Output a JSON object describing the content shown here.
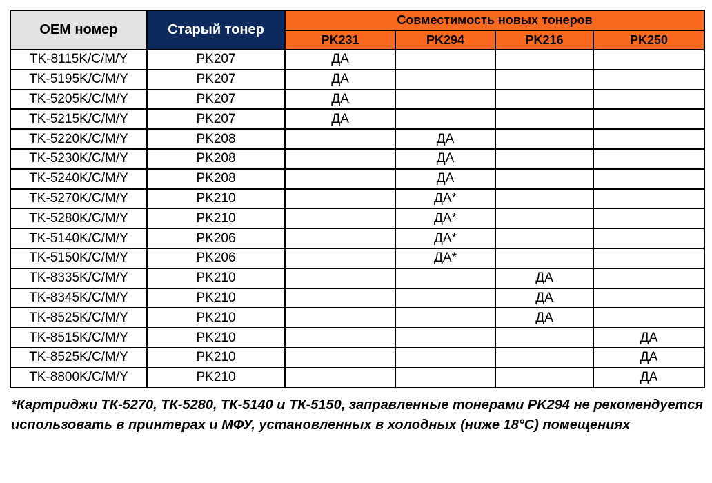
{
  "colors": {
    "header_gray": "#E3E3E3",
    "header_navy": "#0E2A5C",
    "header_orange": "#FA691E",
    "border_black": "#000000"
  },
  "table": {
    "header": {
      "oem": "OEM номер",
      "old_toner": "Старый тонер",
      "compat_group": "Совместимость новых тонеров",
      "new_toners": [
        "PK231",
        "PK294",
        "PK216",
        "PK250"
      ]
    },
    "rows": [
      {
        "oem": "TK-8115K/C/M/Y",
        "old": "PK207",
        "compat": [
          "ДА",
          "",
          "",
          ""
        ]
      },
      {
        "oem": "TK-5195K/C/M/Y",
        "old": "PK207",
        "compat": [
          "ДА",
          "",
          "",
          ""
        ]
      },
      {
        "oem": "TK-5205K/C/M/Y",
        "old": "PK207",
        "compat": [
          "ДА",
          "",
          "",
          ""
        ]
      },
      {
        "oem": "TK-5215K/C/M/Y",
        "old": "PK207",
        "compat": [
          "ДА",
          "",
          "",
          ""
        ]
      },
      {
        "oem": "TK-5220K/C/M/Y",
        "old": "PK208",
        "compat": [
          "",
          "ДА",
          "",
          ""
        ]
      },
      {
        "oem": "TK-5230K/C/M/Y",
        "old": "PK208",
        "compat": [
          "",
          "ДА",
          "",
          ""
        ]
      },
      {
        "oem": "TK-5240K/C/M/Y",
        "old": "PK208",
        "compat": [
          "",
          "ДА",
          "",
          ""
        ]
      },
      {
        "oem": "TK-5270K/C/M/Y",
        "old": "PK210",
        "compat": [
          "",
          "ДА*",
          "",
          ""
        ]
      },
      {
        "oem": "TK-5280K/C/M/Y",
        "old": "PK210",
        "compat": [
          "",
          "ДА*",
          "",
          ""
        ]
      },
      {
        "oem": "TK-5140K/C/M/Y",
        "old": "PK206",
        "compat": [
          "",
          "ДА*",
          "",
          ""
        ]
      },
      {
        "oem": "TK-5150K/C/M/Y",
        "old": "PK206",
        "compat": [
          "",
          "ДА*",
          "",
          ""
        ]
      },
      {
        "oem": "TK-8335K/C/M/Y",
        "old": "PK210",
        "compat": [
          "",
          "",
          "ДА",
          ""
        ]
      },
      {
        "oem": "TK-8345K/C/M/Y",
        "old": "PK210",
        "compat": [
          "",
          "",
          "ДА",
          ""
        ]
      },
      {
        "oem": "TK-8525K/C/M/Y",
        "old": "PK210",
        "compat": [
          "",
          "",
          "ДА",
          ""
        ]
      },
      {
        "oem": "TK-8515K/C/M/Y",
        "old": "PK210",
        "compat": [
          "",
          "",
          "",
          "ДА"
        ]
      },
      {
        "oem": "TK-8525K/C/M/Y",
        "old": "PK210",
        "compat": [
          "",
          "",
          "",
          "ДА"
        ]
      },
      {
        "oem": "TK-8800K/C/M/Y",
        "old": "PK210",
        "compat": [
          "",
          "",
          "",
          "ДА"
        ]
      }
    ]
  },
  "footnote": "*Картриджи ТК-5270, ТК-5280, ТК-5140 и ТК-5150, заправленные тонерами PK294 не рекомендуется использовать в принтерах и МФУ, установленных в холодных (ниже 18°С) помещениях"
}
